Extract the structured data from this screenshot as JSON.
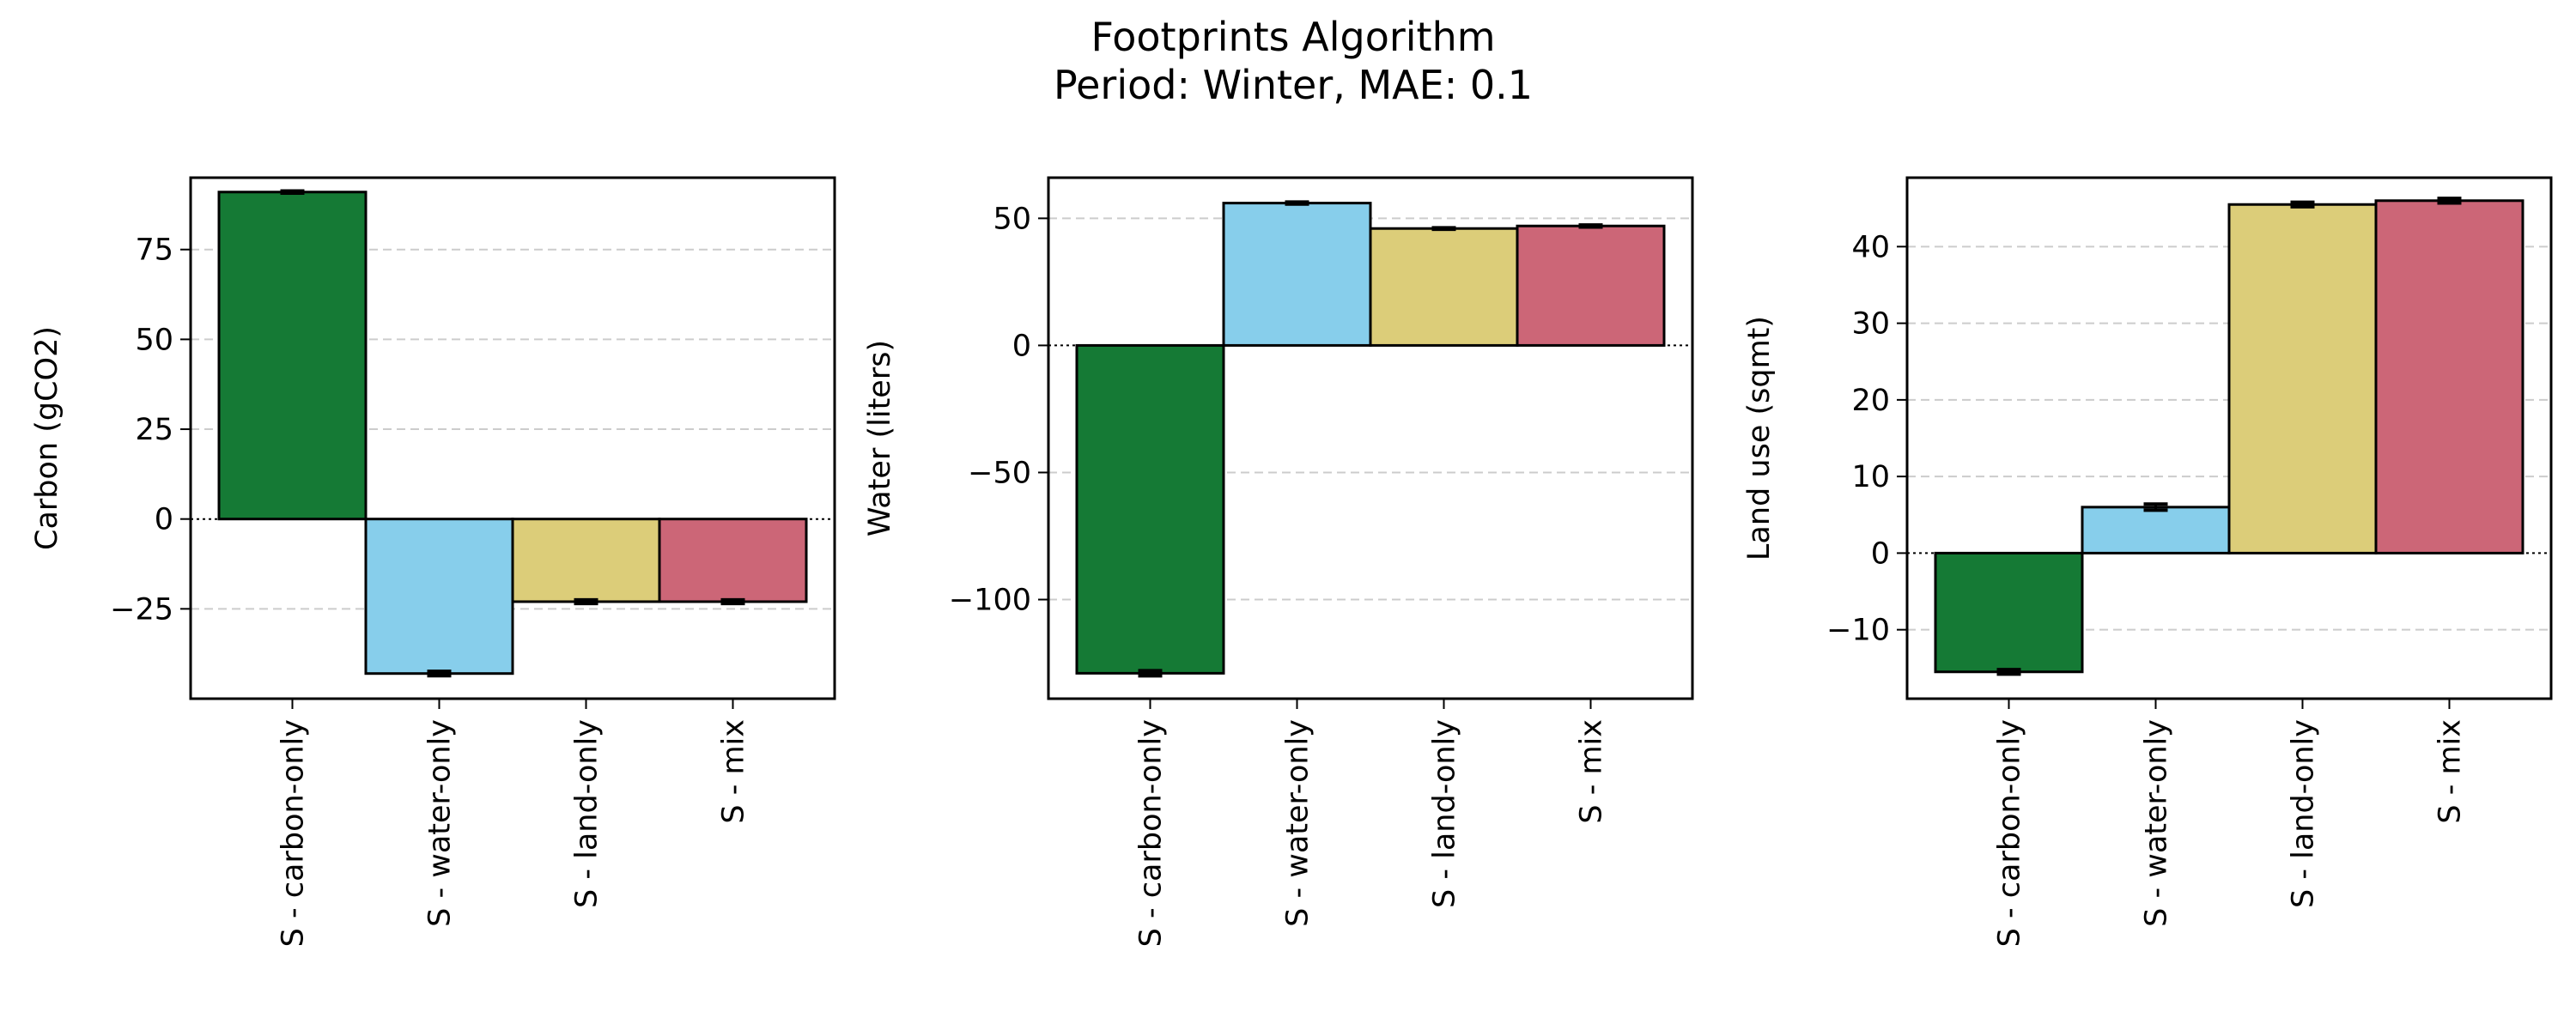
{
  "figure": {
    "title_line1": "Footprints Algorithm",
    "title_line2": "Period: Winter, MAE: 0.1"
  },
  "colors": [
    "#157a35",
    "#87ceeb",
    "#dccd79",
    "#cc6677"
  ],
  "chart_data": [
    {
      "type": "bar",
      "categories": [
        "S - carbon-only",
        "S - water-only",
        "S - land-only",
        "S - mix"
      ],
      "values": [
        91,
        -43,
        -23,
        -23
      ],
      "errors": [
        0.3,
        0.6,
        0.5,
        0.5
      ],
      "ylabel": "Carbon (gCO2)",
      "ylim": [
        -50,
        95
      ],
      "yticks": [
        -25,
        0,
        25,
        50,
        75
      ],
      "grid": true,
      "zero_line": "dotted"
    },
    {
      "type": "bar",
      "categories": [
        "S - carbon-only",
        "S - water-only",
        "S - land-only",
        "S - mix"
      ],
      "values": [
        -129,
        56,
        46,
        47
      ],
      "errors": [
        1.0,
        0.4,
        0.3,
        0.4
      ],
      "ylabel": "Water (liters)",
      "ylim": [
        -139,
        66
      ],
      "yticks": [
        -100,
        -50,
        0,
        50
      ],
      "grid": true,
      "zero_line": "dotted"
    },
    {
      "type": "bar",
      "categories": [
        "S - carbon-only",
        "S - water-only",
        "S - land-only",
        "S - mix"
      ],
      "values": [
        -15.5,
        6,
        45.5,
        46
      ],
      "errors": [
        0.3,
        0.4,
        0.3,
        0.3
      ],
      "ylabel": "Land use (sqmt)",
      "ylim": [
        -19,
        49
      ],
      "yticks": [
        -10,
        0,
        10,
        20,
        30,
        40
      ],
      "grid": true,
      "zero_line": "dotted"
    }
  ]
}
